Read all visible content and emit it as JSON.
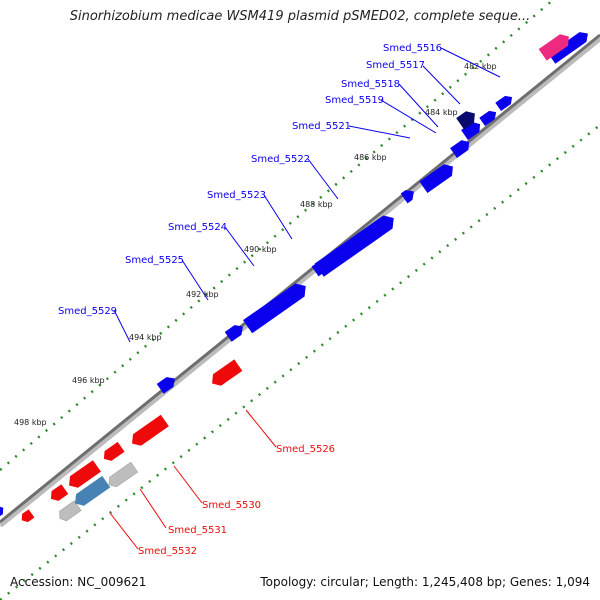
{
  "title": "Sinorhizobium medicae WSM419 plasmid pSMED02, complete seque...",
  "accession": "Accession: NC_009621",
  "summary": "Topology: circular; Length: 1,245,408 bp; Genes: 1,094",
  "colors": {
    "forward_gene": "#0a00ee",
    "reverse_gene": "#ee0a0a",
    "highlight_dark": "#0a0a6e",
    "highlight_pink": "#ee2a80",
    "gray_gene": "#bdbdbd",
    "steelblue_gene": "#4682b4",
    "tick_dot": "#2e8b2e",
    "backbone": "#6e6e6e"
  },
  "ticks": [
    "482 kbp",
    "484 kbp",
    "486 kbp",
    "488 kbp",
    "490 kbp",
    "492 kbp",
    "494 kbp",
    "496 kbp",
    "498 kbp"
  ],
  "gene_labels_forward": [
    "Smed_5516",
    "Smed_5517",
    "Smed_5518",
    "Smed_5519",
    "Smed_5521",
    "Smed_5522",
    "Smed_5523",
    "Smed_5524",
    "Smed_5525",
    "Smed_5529"
  ],
  "gene_labels_reverse": [
    "Smed_5526",
    "Smed_5530",
    "Smed_5531",
    "Smed_5532"
  ]
}
